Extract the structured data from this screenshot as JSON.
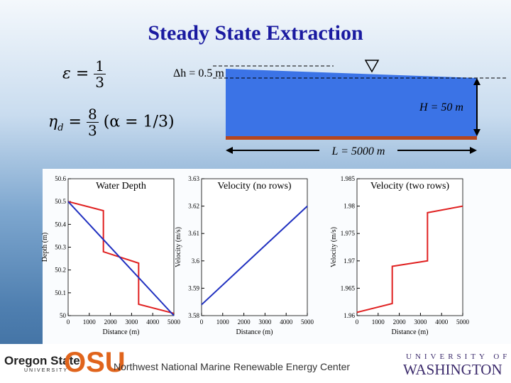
{
  "title": "Steady State Extraction",
  "equations": [
    {
      "lhs": "ε",
      "sign": "=",
      "num": "1",
      "den": "3"
    },
    {
      "lhs": "η",
      "sub": "d",
      "sign": "=",
      "num": "8",
      "den": "3",
      "condition": "(α = 1/3)"
    }
  ],
  "diagram": {
    "delta_h": "Δh = 0.5 m",
    "depth": "H = 50 m",
    "length": "L = 5000 m"
  },
  "footer": {
    "osu_name": "Oregon State",
    "osu_sub": "UNIVERSITY",
    "osu_logo": "OSU",
    "center": "Northwest National Marine Renewable Energy Center",
    "uw_top": "UNIVERSITY OF",
    "uw_name": "WASHINGTON"
  },
  "chart_data": [
    {
      "type": "line",
      "title": "Water Depth",
      "xlabel": "Distance (m)",
      "ylabel": "Depth (m)",
      "xlim": [
        0,
        5000
      ],
      "xticks": [
        0,
        1000,
        2000,
        3000,
        4000,
        5000
      ],
      "ylim": [
        50,
        50.6
      ],
      "yticks": [
        50,
        50.1,
        50.2,
        50.3,
        50.4,
        50.5,
        50.6
      ],
      "series": [
        {
          "color": "#e02020",
          "x": [
            0,
            1667,
            1667,
            3333,
            3333,
            5000
          ],
          "values": [
            50.5,
            50.46,
            50.28,
            50.23,
            50.05,
            50.01
          ]
        },
        {
          "color": "#2030c0",
          "x": [
            0,
            5000
          ],
          "values": [
            50.5,
            50
          ]
        }
      ]
    },
    {
      "type": "line",
      "title": "Velocity (no rows)",
      "xlabel": "Distance (m)",
      "ylabel": "Velocity (m/s)",
      "xlim": [
        0,
        5000
      ],
      "xticks": [
        0,
        1000,
        2000,
        3000,
        4000,
        5000
      ],
      "ylim": [
        3.58,
        3.63
      ],
      "yticks": [
        3.58,
        3.59,
        3.6,
        3.61,
        3.62,
        3.63
      ],
      "series": [
        {
          "color": "#2030c0",
          "x": [
            0,
            5000
          ],
          "values": [
            3.584,
            3.62
          ]
        }
      ]
    },
    {
      "type": "line",
      "title": "Velocity (two rows)",
      "xlabel": "Distance (m)",
      "ylabel": "Velocity (m/s)",
      "xlim": [
        0,
        5000
      ],
      "xticks": [
        0,
        1000,
        2000,
        3000,
        4000,
        5000
      ],
      "ylim": [
        1.96,
        1.985
      ],
      "yticks": [
        1.96,
        1.965,
        1.97,
        1.975,
        1.98,
        1.985
      ],
      "series": [
        {
          "color": "#e02020",
          "x": [
            0,
            1667,
            1667,
            3333,
            3333,
            5000
          ],
          "values": [
            1.9606,
            1.9622,
            1.969,
            1.97,
            1.9788,
            1.98
          ]
        }
      ]
    }
  ]
}
